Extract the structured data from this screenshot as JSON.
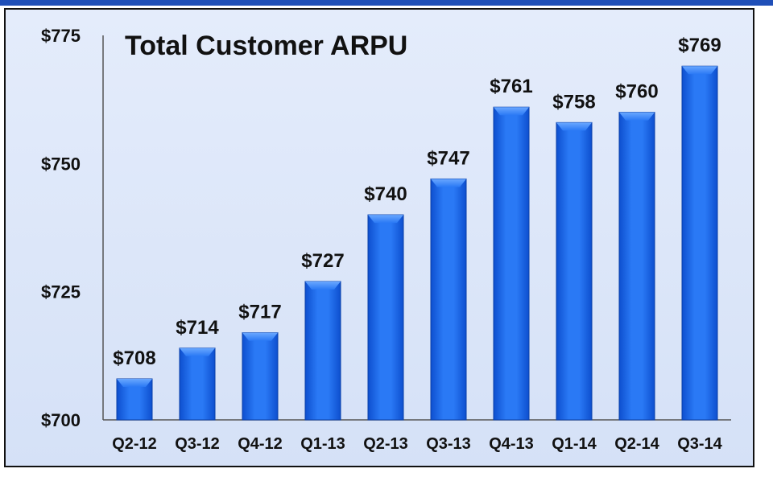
{
  "chart_data": {
    "type": "bar",
    "title": "Total Customer ARPU",
    "categories": [
      "Q2-12",
      "Q3-12",
      "Q4-12",
      "Q1-13",
      "Q2-13",
      "Q3-13",
      "Q4-13",
      "Q1-14",
      "Q2-14",
      "Q3-14"
    ],
    "values": [
      708,
      714,
      717,
      727,
      740,
      747,
      761,
      758,
      760,
      769
    ],
    "value_labels": [
      "$708",
      "$714",
      "$717",
      "$727",
      "$740",
      "$747",
      "$761",
      "$758",
      "$760",
      "$769"
    ],
    "ylim": [
      700,
      775
    ],
    "yticks": [
      700,
      725,
      750,
      775
    ],
    "ytick_labels": [
      "$700",
      "$725",
      "$750",
      "$775"
    ],
    "grid": false,
    "legend": "none",
    "bar_color": "#1a63e6",
    "bar_highlight": "#4a90ff",
    "background": "#dce6f8"
  }
}
